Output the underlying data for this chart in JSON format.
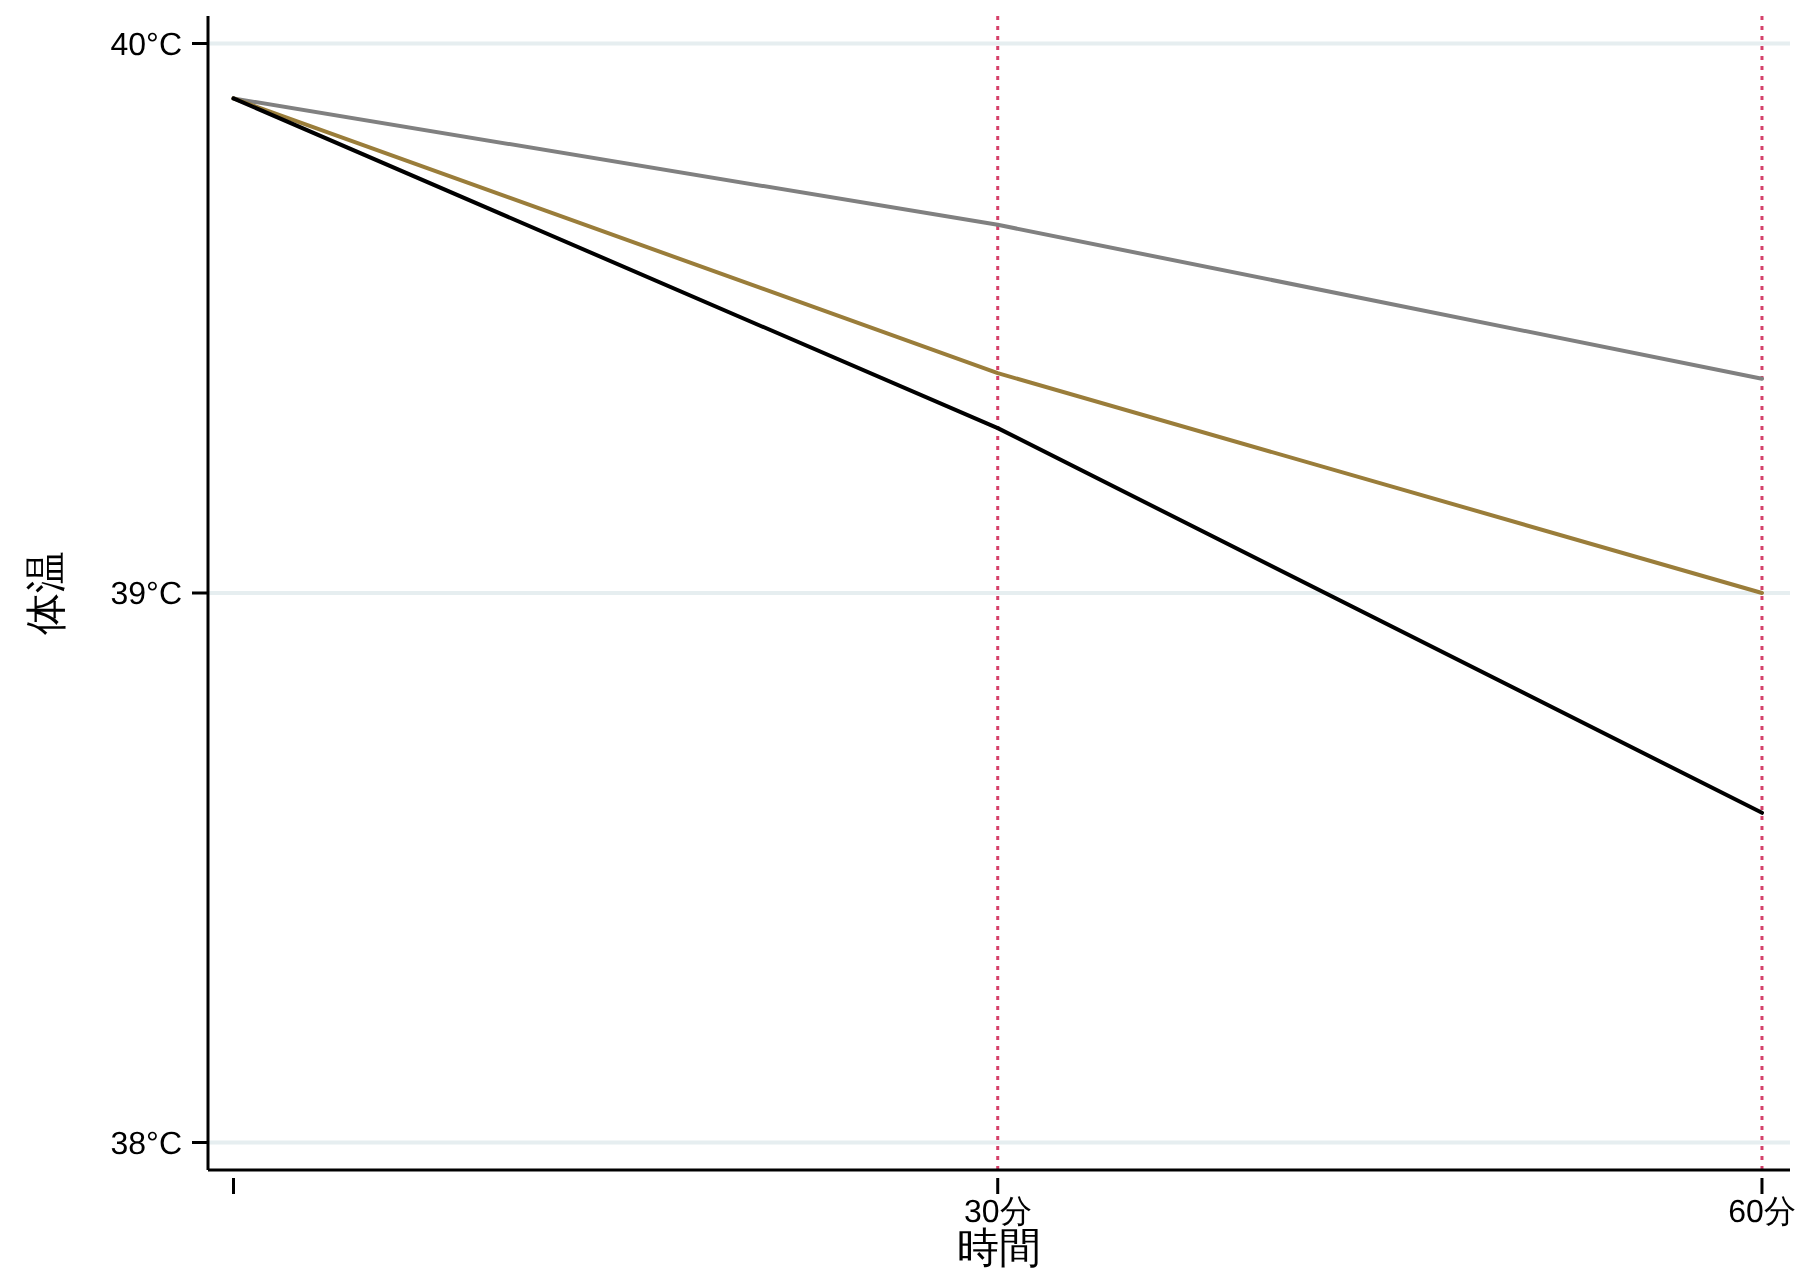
{
  "chart_data": {
    "type": "line",
    "xlabel": "時間",
    "ylabel": "体温",
    "x": [
      0,
      30,
      60
    ],
    "series": [
      {
        "color": "#808080",
        "values": [
          39.9,
          39.67,
          39.39
        ]
      },
      {
        "color": "#9a7d3a",
        "values": [
          39.9,
          39.4,
          39.0
        ]
      },
      {
        "color": "#000000",
        "values": [
          39.9,
          39.3,
          38.6
        ]
      }
    ],
    "xlim": [
      -1,
      61.1
    ],
    "xticks": [
      {
        "value": 0,
        "label": null
      },
      {
        "value": 30,
        "label": "30分"
      },
      {
        "value": 60,
        "label": "60分"
      }
    ],
    "ylim": [
      37.95,
      40.05
    ],
    "yticks": [
      {
        "value": 38,
        "label": "38°C"
      },
      {
        "value": 39,
        "label": "39°C"
      },
      {
        "value": 40,
        "label": "40°C"
      }
    ],
    "grid": "y",
    "ref_lines": [
      {
        "axis": "x",
        "value": 30,
        "color": "#d6406a",
        "line_style": "dotted"
      },
      {
        "axis": "x",
        "value": 60,
        "color": "#d6406a",
        "line_style": "dotted"
      }
    ]
  }
}
